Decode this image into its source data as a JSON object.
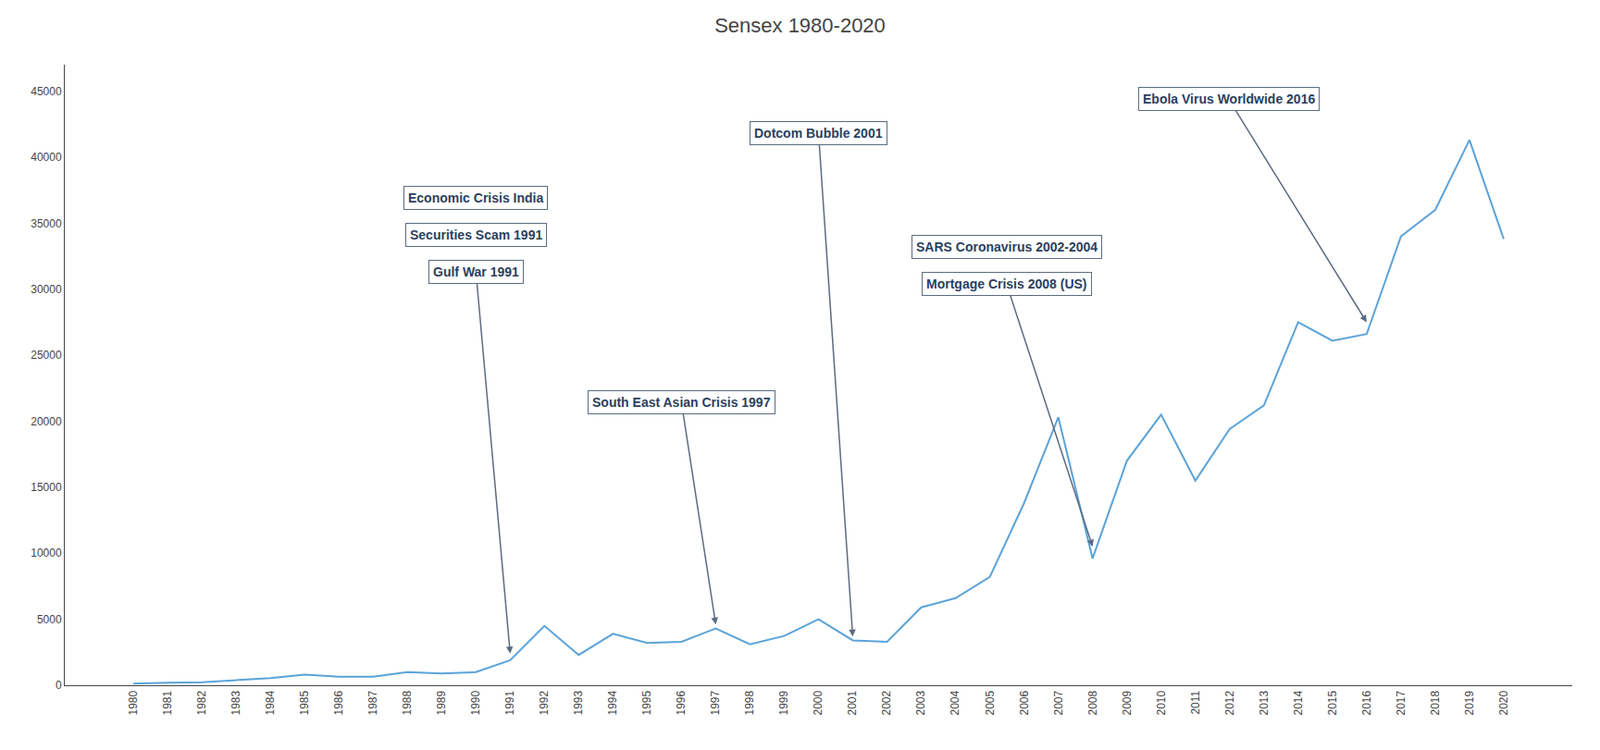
{
  "chart_data": {
    "type": "line",
    "title": "Sensex 1980-2020",
    "x": [
      1980,
      1981,
      1982,
      1983,
      1984,
      1985,
      1986,
      1987,
      1988,
      1989,
      1990,
      1991,
      1992,
      1993,
      1994,
      1995,
      1996,
      1997,
      1998,
      1999,
      2000,
      2001,
      2002,
      2003,
      2004,
      2005,
      2006,
      2007,
      2008,
      2009,
      2010,
      2011,
      2012,
      2013,
      2014,
      2015,
      2016,
      2017,
      2018,
      2019,
      2020
    ],
    "values": [
      120,
      200,
      220,
      400,
      550,
      800,
      650,
      650,
      1000,
      900,
      1000,
      1900,
      4500,
      2300,
      3900,
      3200,
      3300,
      4300,
      3100,
      3740,
      5000,
      3400,
      3300,
      5900,
      6600,
      8200,
      13800,
      20300,
      9600,
      17000,
      20500,
      15500,
      19400,
      21200,
      27500,
      26100,
      26600,
      34000,
      36000,
      41300,
      33800
    ],
    "color": "#5ba3d9",
    "xlim": [
      1978,
      2022
    ],
    "xticks": [
      1980,
      1981,
      1982,
      1983,
      1984,
      1985,
      1986,
      1987,
      1988,
      1989,
      1990,
      1991,
      1992,
      1993,
      1994,
      1995,
      1996,
      1997,
      1998,
      1999,
      2000,
      2001,
      2002,
      2003,
      2004,
      2005,
      2006,
      2007,
      2008,
      2009,
      2010,
      2011,
      2012,
      2013,
      2014,
      2015,
      2016,
      2017,
      2018,
      2019,
      2020
    ],
    "ylim": [
      0,
      47000
    ],
    "yticks": [
      0,
      5000,
      10000,
      15000,
      20000,
      25000,
      30000,
      35000,
      40000,
      45000
    ],
    "grid": false,
    "annotations": [
      {
        "text": "Economic Crisis India"
      },
      {
        "text": "Securities Scam 1991"
      },
      {
        "text": "Gulf War 1991",
        "x": 1991,
        "y": 2400
      },
      {
        "text": "South East Asian Crisis 1997",
        "x": 1997,
        "y": 4600
      },
      {
        "text": "Dotcom Bubble 2001",
        "x": 2001,
        "y": 3700
      },
      {
        "text": "SARS Coronavirus 2002-2004"
      },
      {
        "text": "Mortgage Crisis 2008 (US)",
        "x": 2008,
        "y": 10500
      },
      {
        "text": "Ebola Virus Worldwide 2016",
        "x": 2016,
        "y": 27500
      }
    ]
  }
}
